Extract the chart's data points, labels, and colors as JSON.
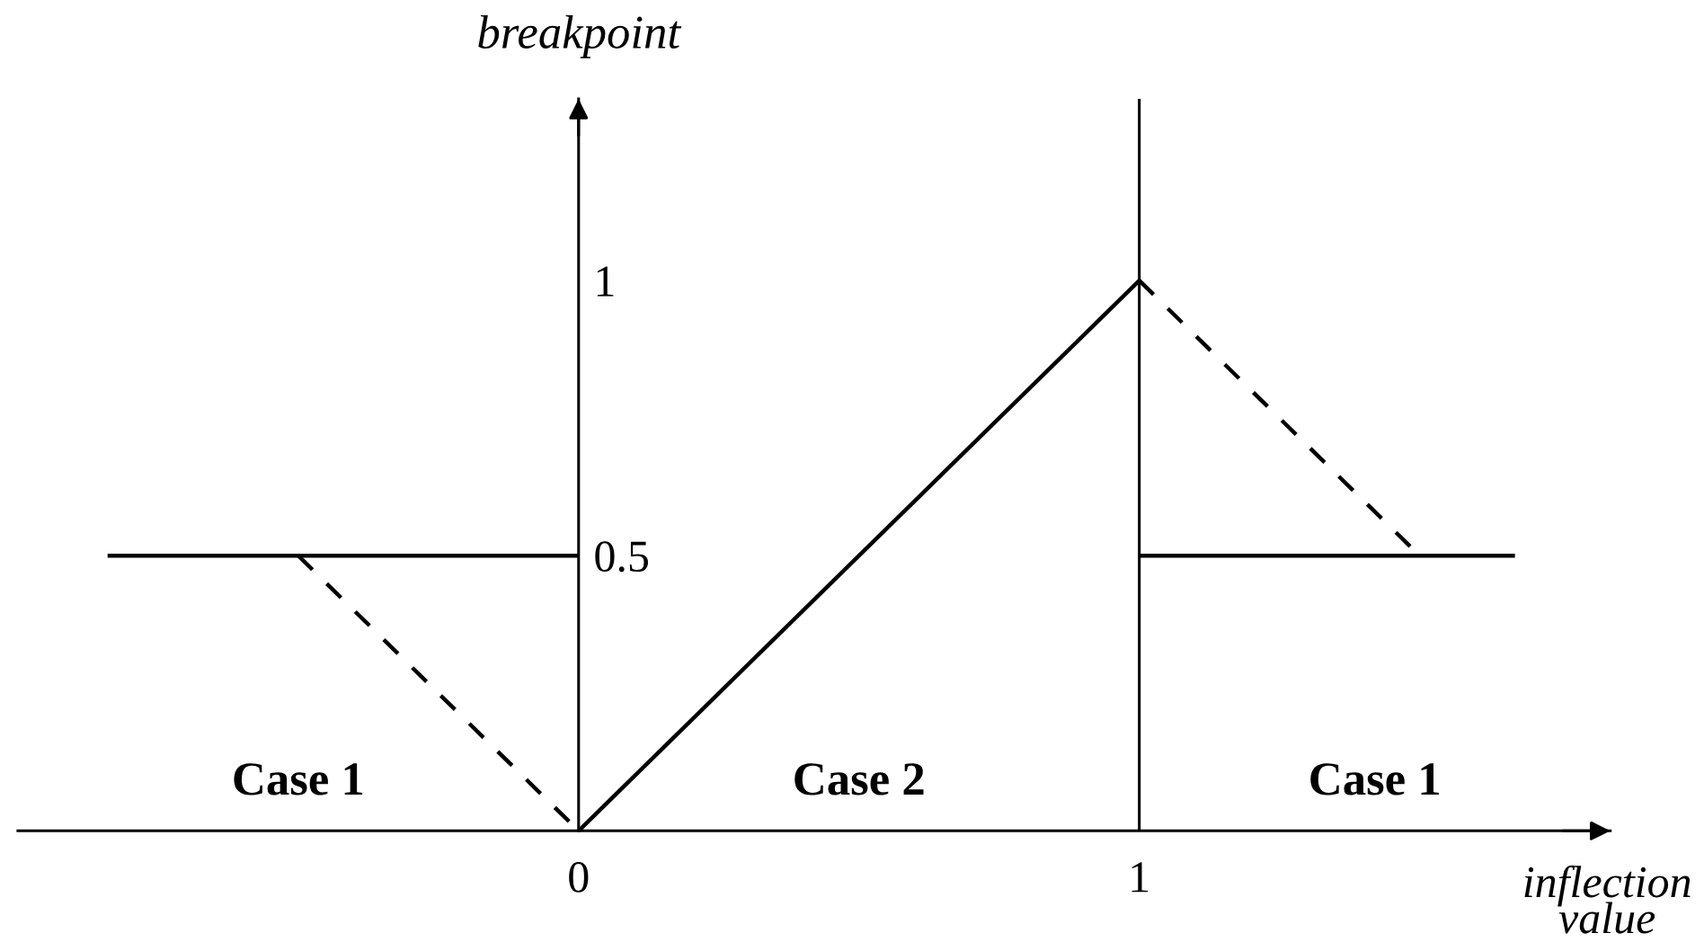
{
  "chart_data": {
    "type": "line",
    "xlabel": "inflection value",
    "ylabel": "breakpoint",
    "xlim": [
      -1.0,
      1.84
    ],
    "ylim": [
      0,
      1.33
    ],
    "xticks": [
      0,
      1
    ],
    "yticks": [
      0.5,
      1
    ],
    "grid": false,
    "marker": "none",
    "line_style": "solid",
    "series": [
      {
        "x": [
          -0.84,
          0
        ],
        "values": [
          0.5,
          0.5
        ],
        "color": "#000000"
      },
      {
        "x": [
          -0.5,
          0
        ],
        "values": [
          0.5,
          0
        ],
        "color": "#000000",
        "line_style": "dashed"
      },
      {
        "x": [
          0,
          1
        ],
        "values": [
          0,
          1
        ],
        "color": "#000000"
      },
      {
        "x": [
          1,
          1.5
        ],
        "values": [
          1,
          0.5
        ],
        "color": "#000000",
        "line_style": "dashed"
      },
      {
        "x": [
          1,
          1.67
        ],
        "values": [
          0.5,
          0.5
        ],
        "color": "#000000"
      }
    ],
    "ref_lines": [
      {
        "axis": "x",
        "value": 1,
        "color": "#000000"
      }
    ],
    "annotations": [
      "Case 1",
      "Case 2",
      "Case 1"
    ]
  }
}
